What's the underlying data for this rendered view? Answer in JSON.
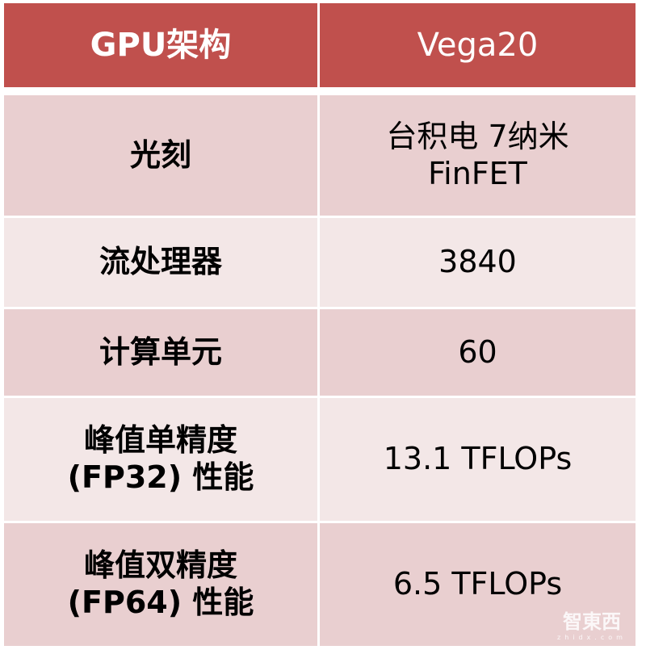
{
  "header": {
    "col1": "GPU架构",
    "col2": "Vega20"
  },
  "rows": [
    {
      "label": [
        "光刻"
      ],
      "value": [
        "台积电 7纳米",
        "FinFET"
      ]
    },
    {
      "label": [
        "流处理器"
      ],
      "value": [
        "3840"
      ]
    },
    {
      "label": [
        "计算单元"
      ],
      "value": [
        "60"
      ]
    },
    {
      "label": [
        "峰值单精度",
        "(FP32) 性能"
      ],
      "value": [
        "13.1 TFLOPs"
      ]
    },
    {
      "label": [
        "峰值双精度",
        "(FP64) 性能"
      ],
      "value": [
        "6.5 TFLOPs"
      ]
    }
  ],
  "watermark": {
    "text": "智東西",
    "sub": "zhidx.com"
  },
  "colors": {
    "header": "#C0504D",
    "row_dark": "#E9CFD0",
    "row_light": "#F3E7E7"
  }
}
